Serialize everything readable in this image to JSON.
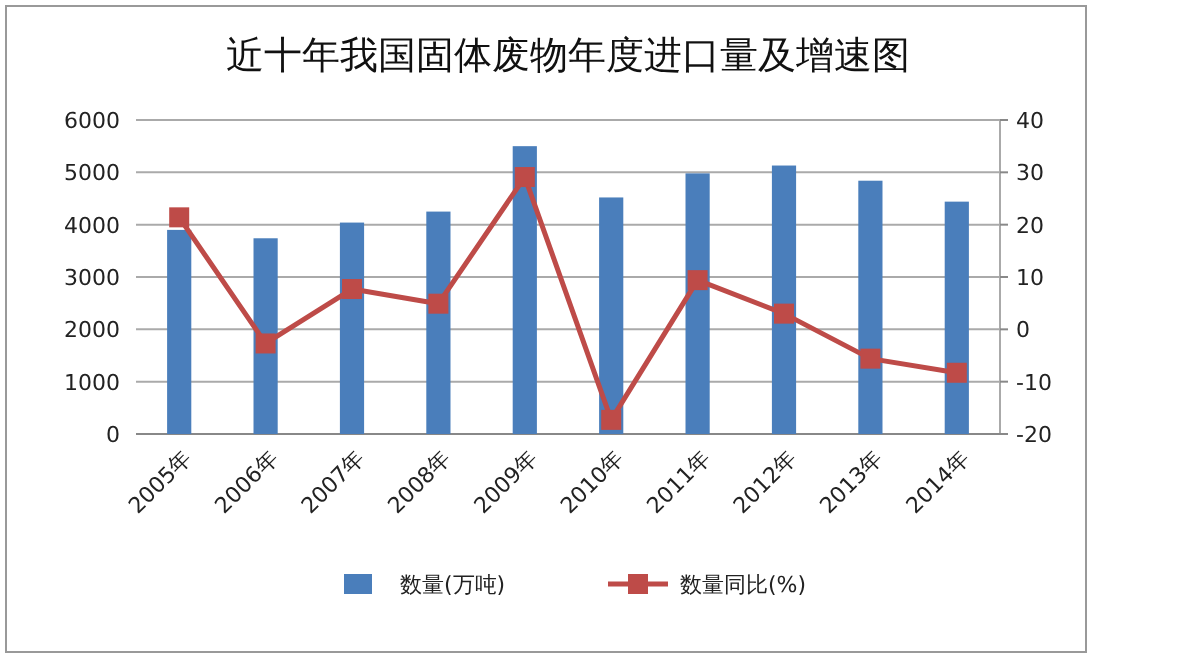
{
  "chart_data": {
    "type": "bar",
    "title": "近十年我国固体废物年度进口量及增速图",
    "categories": [
      "2005年",
      "2006年",
      "2007年",
      "2008年",
      "2009年",
      "2010年",
      "2011年",
      "2012年",
      "2013年",
      "2014年"
    ],
    "series": [
      {
        "name": "数量(万吨)",
        "color": "#4a7ebb",
        "values": [
          3900,
          3740,
          4040,
          4250,
          5500,
          4520,
          4980,
          5130,
          4840,
          4440
        ]
      },
      {
        "name": "数量同比(%)",
        "type": "line",
        "axis": "y2",
        "color": "#be4b48",
        "marker": "square",
        "values": [
          21.4,
          -2.7,
          7.7,
          4.9,
          29.1,
          -17.3,
          9.4,
          3.0,
          -5.6,
          -8.3
        ]
      }
    ],
    "ylim": [
      0,
      6000
    ],
    "yticks": [
      0,
      1000,
      2000,
      3000,
      4000,
      5000,
      6000
    ],
    "y2lim": [
      -20,
      40
    ],
    "y2ticks": [
      -20,
      -10,
      0,
      10,
      20,
      30,
      40
    ],
    "grid": "y",
    "legend": "bottom"
  }
}
